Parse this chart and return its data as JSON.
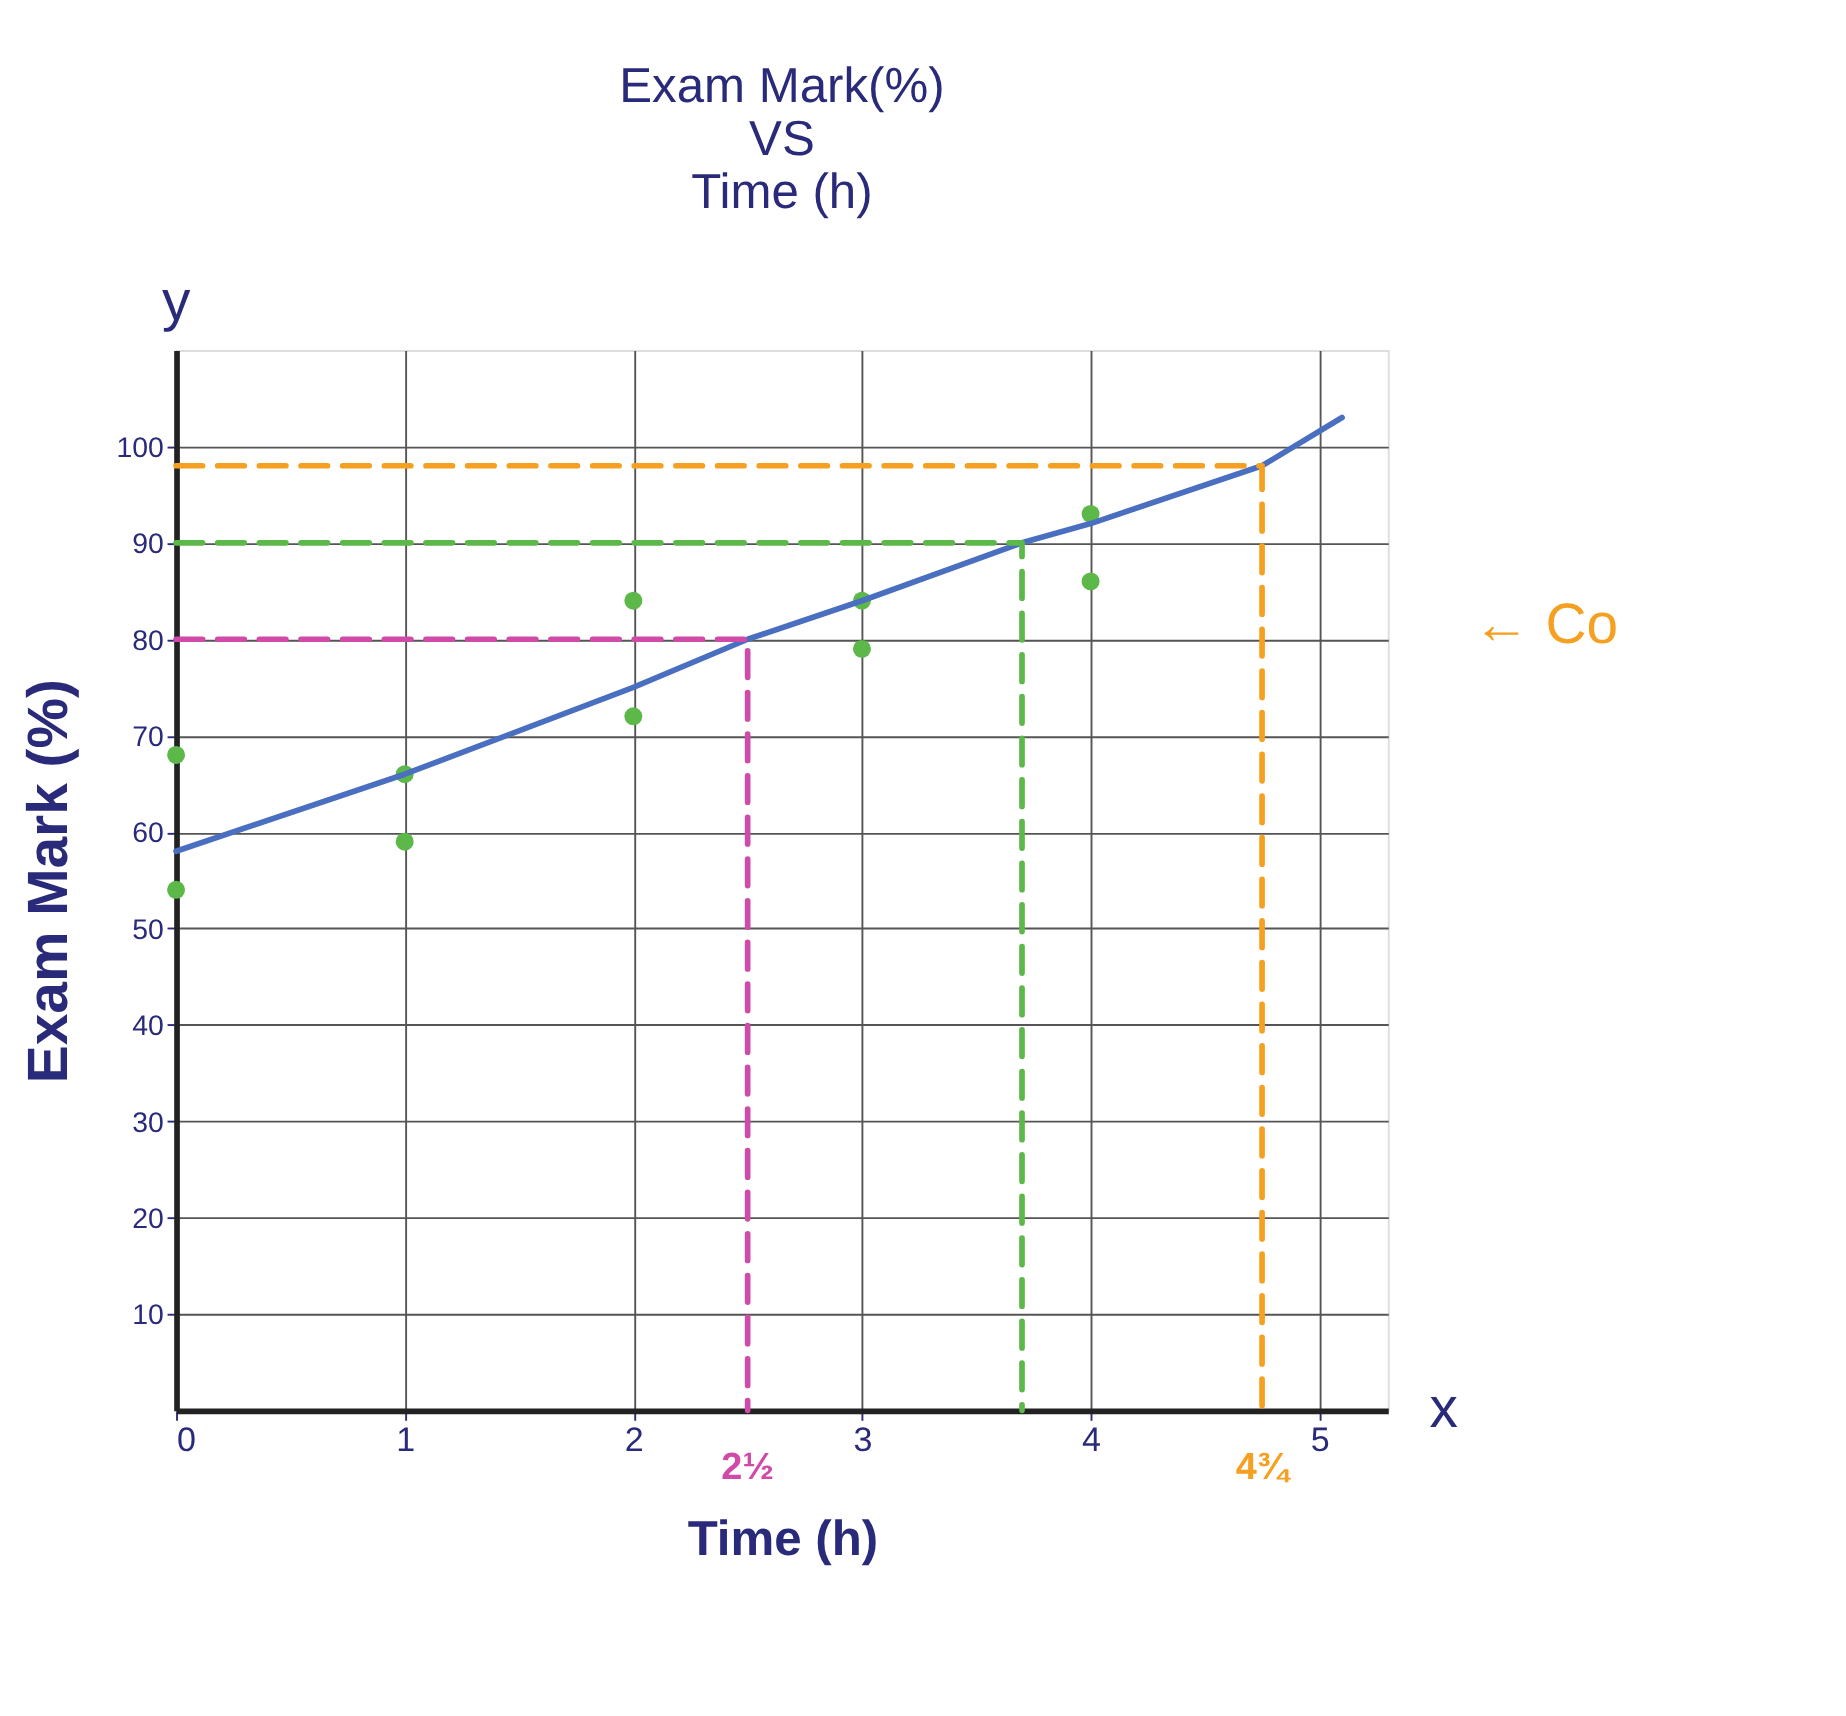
{
  "chart_data": {
    "type": "scatter",
    "title": [
      "Exam Mark(%)",
      "VS",
      "Time (h)"
    ],
    "xlabel": "Time (h)",
    "ylabel": "Exam Mark (%)",
    "xlim": [
      0,
      5.3
    ],
    "ylim": [
      0,
      110
    ],
    "xticks": [
      0,
      1,
      2,
      3,
      4,
      5
    ],
    "yticks": [
      10,
      20,
      30,
      40,
      50,
      60,
      70,
      80,
      90,
      100
    ],
    "grid": true,
    "series": [
      {
        "color": "#5cb848",
        "marker": "circle",
        "x": [
          0,
          0,
          1,
          1,
          2,
          2,
          3,
          3,
          4,
          4
        ],
        "values": [
          68,
          54,
          66,
          59,
          84,
          72,
          84,
          79,
          93,
          86
        ]
      },
      {
        "type": "line",
        "color": "#4a6fc0",
        "line_style": "solid",
        "x": [
          0,
          1,
          2,
          2.5,
          3,
          3.7,
          4,
          4.75,
          5.1
        ],
        "values": [
          58,
          66,
          75,
          80,
          84,
          90,
          92,
          98,
          103
        ]
      },
      {
        "type": "line",
        "color": "#d04aa8",
        "line_style": "dashed",
        "x": [
          0,
          2.5,
          2.5
        ],
        "values": [
          80,
          80,
          0
        ]
      },
      {
        "type": "line",
        "color": "#5cb848",
        "line_style": "dashed",
        "x": [
          0,
          3.7,
          3.7
        ],
        "values": [
          90,
          90,
          0
        ]
      },
      {
        "type": "line",
        "color": "#f5a020",
        "line_style": "dashed",
        "x": [
          0,
          4.75,
          4.75
        ],
        "values": [
          98,
          98,
          0
        ]
      }
    ],
    "annotations": [
      {
        "text": "2½",
        "x": 2.5,
        "y": 0
      },
      {
        "text": "4¾",
        "x": 4.75,
        "y": 0
      },
      "y",
      "x",
      "← Co"
    ]
  }
}
